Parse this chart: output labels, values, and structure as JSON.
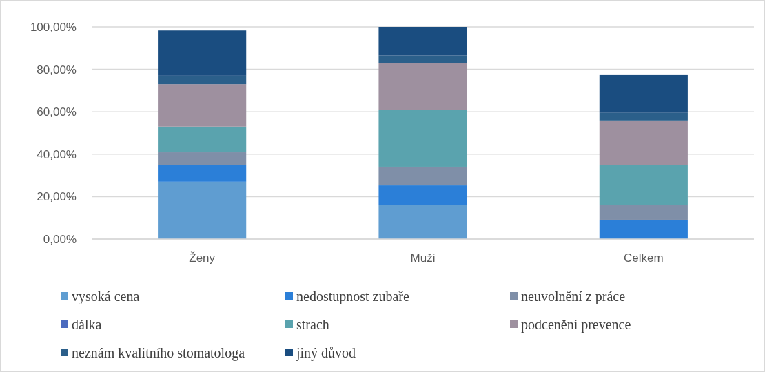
{
  "chart_data": {
    "type": "bar",
    "stacked": true,
    "categories": [
      "Ženy",
      "Muži",
      "Celkem"
    ],
    "series": [
      {
        "name": "vysoká cena",
        "color": "#5f9dd1",
        "values": [
          27.0,
          16.1,
          0
        ]
      },
      {
        "name": "nedostupnost zubaře",
        "color": "#2b7fd8",
        "values": [
          7.8,
          9.2,
          9.1
        ]
      },
      {
        "name": "neuvolnění z práce",
        "color": "#7f8fa8",
        "values": [
          6.1,
          8.8,
          7.0
        ]
      },
      {
        "name": "dálka",
        "color": "#4b6bbf",
        "values": [
          0,
          0,
          0
        ]
      },
      {
        "name": "strach",
        "color": "#5aa3ae",
        "values": [
          12.1,
          26.7,
          18.7
        ]
      },
      {
        "name": "podcenění prevence",
        "color": "#9e909f",
        "values": [
          20.0,
          22.1,
          21.1
        ]
      },
      {
        "name": "neznám kvalitního stomatologa",
        "color": "#2b5f8a",
        "values": [
          4.0,
          3.6,
          3.6
        ]
      },
      {
        "name": "jiný důvod",
        "color": "#1a4d80",
        "values": [
          21.3,
          13.5,
          17.8
        ]
      }
    ],
    "ylim": [
      0,
      100
    ],
    "yticks": [
      {
        "value": 0,
        "label": "0,00%"
      },
      {
        "value": 20,
        "label": "20,00%"
      },
      {
        "value": 40,
        "label": "40,00%"
      },
      {
        "value": 60,
        "label": "60,00%"
      },
      {
        "value": 80,
        "label": "80,00%"
      },
      {
        "value": 100,
        "label": "100,00%"
      }
    ],
    "grid": "y",
    "legend": "bottom"
  }
}
